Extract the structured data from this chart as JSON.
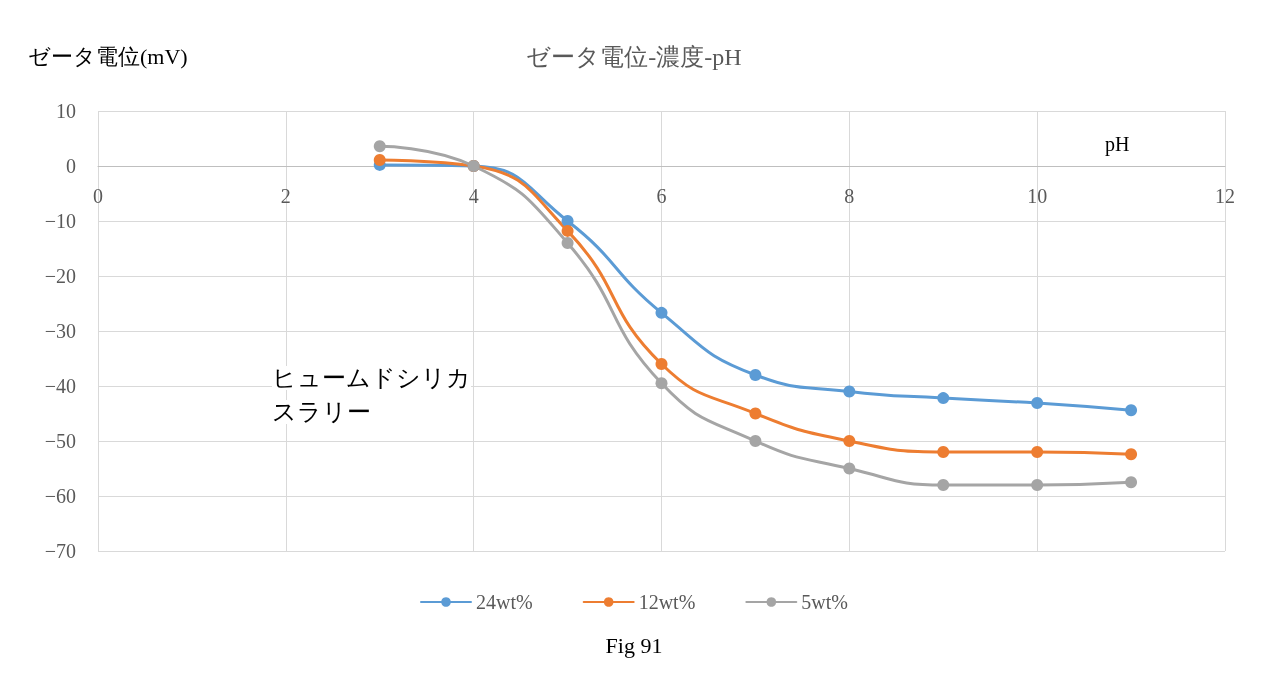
{
  "chart_data": {
    "type": "line",
    "title": "ゼータ電位-濃度-pH",
    "xlabel": "pH",
    "ylabel": "ゼータ電位(mV)",
    "x": [
      3,
      4,
      5,
      6,
      7,
      8,
      9,
      10,
      11
    ],
    "series": [
      {
        "name": "24wt%",
        "color": "#5b9bd5",
        "values": [
          0.2,
          0,
          -10,
          -26.7,
          -38,
          -41,
          -42.2,
          -43.1,
          -44.4
        ]
      },
      {
        "name": "12wt%",
        "color": "#ed7d31",
        "values": [
          1.1,
          0,
          -11.8,
          -36,
          -45,
          -50,
          -52,
          -52,
          -52.4
        ]
      },
      {
        "name": "5wt%",
        "color": "#a5a5a5",
        "values": [
          3.6,
          0,
          -14,
          -39.5,
          -50,
          -55,
          -58,
          -58,
          -57.5
        ]
      }
    ],
    "xlim": [
      0,
      12
    ],
    "xticks": [
      0,
      2,
      4,
      6,
      8,
      10,
      12
    ],
    "ylim": [
      -70,
      10
    ],
    "yticks": [
      -70,
      -60,
      -50,
      -40,
      -30,
      -20,
      -10,
      0,
      10
    ],
    "grid": true,
    "legend": "bottom",
    "marker": "circle",
    "line_style": "solid",
    "annotations": [
      "ヒュームドシリカ",
      "スラリー",
      "Fig 91"
    ]
  }
}
